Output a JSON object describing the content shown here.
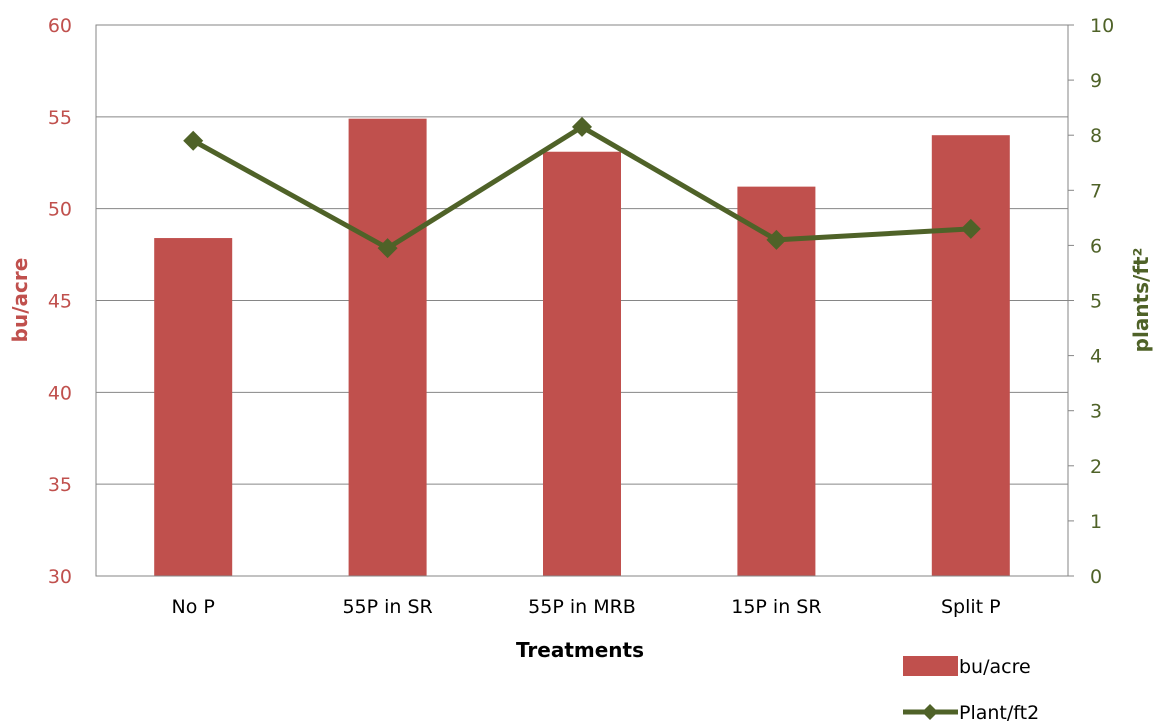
{
  "chart_data": {
    "type": "bar",
    "categories": [
      "No P",
      "55P in SR",
      "55P in MRB",
      "15P in SR",
      "Split P"
    ],
    "series": [
      {
        "name": "bu/acre",
        "type": "bar",
        "axis": "left",
        "color": "#c0504d",
        "values": [
          48.4,
          54.9,
          53.1,
          51.2,
          54.0
        ]
      },
      {
        "name": "Plant/ft2",
        "type": "line",
        "axis": "right",
        "color": "#4f6228",
        "marker": "diamond",
        "values": [
          7.9,
          5.95,
          8.15,
          6.1,
          6.3
        ]
      }
    ],
    "title": "",
    "xlabel": "Treatments",
    "ylabel": "bu/acre",
    "y2label": "plants/ft²",
    "ylim": [
      30,
      60
    ],
    "y2lim": [
      0,
      10
    ],
    "yticks": [
      "30",
      "35",
      "40",
      "45",
      "50",
      "55",
      "60"
    ],
    "y2ticks": [
      "0",
      "1",
      "2",
      "3",
      "4",
      "5",
      "6",
      "7",
      "8",
      "9",
      "10"
    ],
    "grid": true,
    "legend_position": "bottom-right"
  }
}
